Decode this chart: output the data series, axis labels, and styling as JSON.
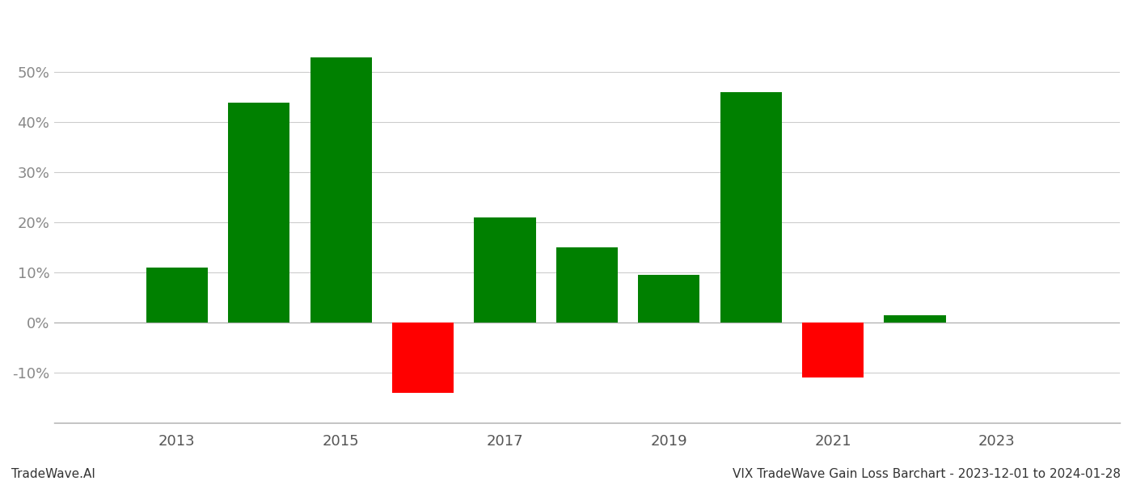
{
  "years": [
    2013,
    2014,
    2015,
    2016,
    2017,
    2018,
    2019,
    2020,
    2021,
    2022,
    2023
  ],
  "values": [
    0.11,
    0.44,
    0.53,
    -0.14,
    0.21,
    0.15,
    0.095,
    0.46,
    -0.11,
    0.015,
    null
  ],
  "colors_positive": "#008000",
  "colors_negative": "#ff0000",
  "ylim_min": -0.2,
  "ylim_max": 0.62,
  "footer_left": "TradeWave.AI",
  "footer_right": "VIX TradeWave Gain Loss Barchart - 2023-12-01 to 2024-01-28",
  "grid_color": "#cccccc",
  "bar_width": 0.75,
  "background_color": "#ffffff",
  "yticks": [
    -0.1,
    0.0,
    0.1,
    0.2,
    0.3,
    0.4,
    0.5
  ],
  "xtick_labels": [
    "2013",
    "2015",
    "2017",
    "2019",
    "2021",
    "2023"
  ],
  "xtick_year_positions": [
    2013,
    2015,
    2017,
    2019,
    2021,
    2023
  ],
  "all_years": [
    2013,
    2014,
    2015,
    2016,
    2017,
    2018,
    2019,
    2020,
    2021,
    2022,
    2023
  ],
  "xlim_min": 2011.5,
  "xlim_max": 2024.5,
  "footer_fontsize": 11,
  "tick_fontsize": 13
}
